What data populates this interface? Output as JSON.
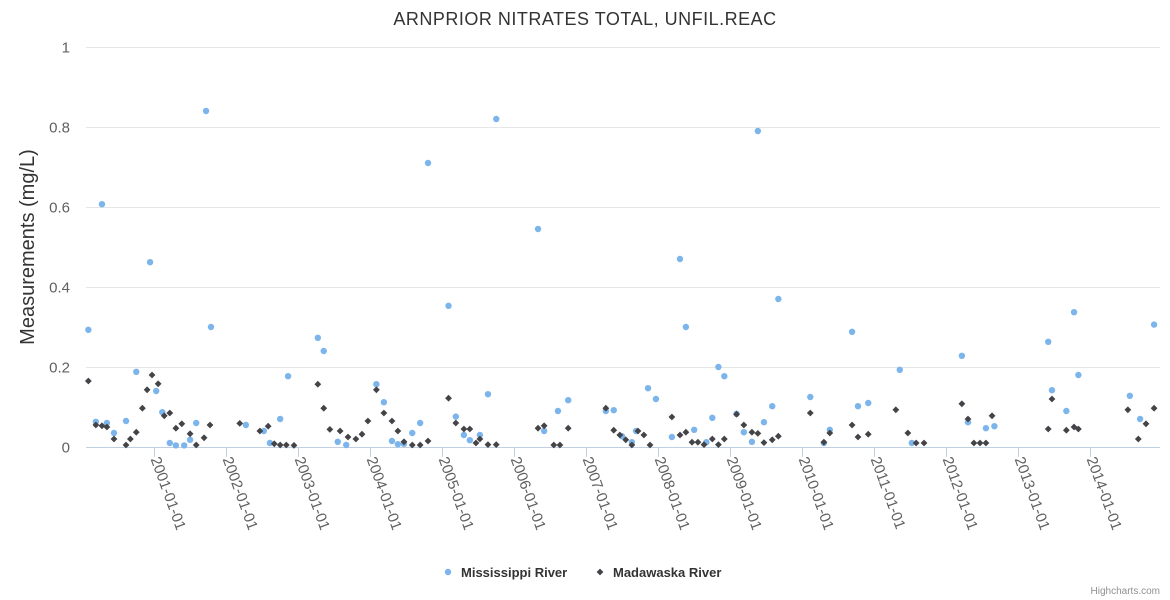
{
  "chart_data": {
    "type": "scatter",
    "title": "ARNPRIOR NITRATES TOTAL, UNFIL.REAC",
    "xlabel": "",
    "ylabel": "Measurements (mg/L)",
    "ylim": [
      0,
      1
    ],
    "yticks": [
      "0",
      "0.2",
      "0.4",
      "0.6",
      "0.8",
      "1"
    ],
    "xlim": [
      "2000-01-20",
      "2014-12-20"
    ],
    "xticks": [
      "2001-01-01",
      "2002-01-01",
      "2003-01-01",
      "2004-01-01",
      "2005-01-01",
      "2006-01-01",
      "2007-01-01",
      "2008-01-01",
      "2009-01-01",
      "2010-01-01",
      "2011-01-01",
      "2012-01-01",
      "2013-01-01",
      "2014-01-01"
    ],
    "grid": true,
    "legend_position": "bottom-center",
    "credits": "Highcharts.com",
    "series": [
      {
        "name": "Mississippi River",
        "color": "#7cb5ec",
        "marker": "circle",
        "points": [
          [
            "2000-02-01",
            0.293
          ],
          [
            "2000-03-10",
            0.063
          ],
          [
            "2000-04-10",
            0.607
          ],
          [
            "2000-05-05",
            0.06
          ],
          [
            "2000-06-10",
            0.035
          ],
          [
            "2000-08-10",
            0.065
          ],
          [
            "2000-10-01",
            0.188
          ],
          [
            "2000-12-10",
            0.462
          ],
          [
            "2001-01-10",
            0.14
          ],
          [
            "2001-02-10",
            0.087
          ],
          [
            "2001-03-20",
            0.01
          ],
          [
            "2001-04-20",
            0.004
          ],
          [
            "2001-06-01",
            0.004
          ],
          [
            "2001-07-01",
            0.018
          ],
          [
            "2001-08-01",
            0.06
          ],
          [
            "2001-09-20",
            0.84
          ],
          [
            "2001-10-15",
            0.3
          ],
          [
            "2002-04-10",
            0.055
          ],
          [
            "2002-07-10",
            0.04
          ],
          [
            "2002-08-10",
            0.01
          ],
          [
            "2002-10-01",
            0.07
          ],
          [
            "2002-11-10",
            0.177
          ],
          [
            "2003-04-10",
            0.273
          ],
          [
            "2003-05-10",
            0.24
          ],
          [
            "2003-07-20",
            0.013
          ],
          [
            "2003-09-01",
            0.005
          ],
          [
            "2004-02-01",
            0.157
          ],
          [
            "2004-03-10",
            0.112
          ],
          [
            "2004-04-20",
            0.015
          ],
          [
            "2004-05-20",
            0.007
          ],
          [
            "2004-06-20",
            0.008
          ],
          [
            "2004-08-01",
            0.035
          ],
          [
            "2004-09-10",
            0.06
          ],
          [
            "2004-10-20",
            0.71
          ],
          [
            "2005-02-01",
            0.353
          ],
          [
            "2005-03-10",
            0.076
          ],
          [
            "2005-04-20",
            0.03
          ],
          [
            "2005-05-20",
            0.017
          ],
          [
            "2005-07-10",
            0.03
          ],
          [
            "2005-08-20",
            0.132
          ],
          [
            "2005-10-01",
            0.82
          ],
          [
            "2006-05-01",
            0.545
          ],
          [
            "2006-06-01",
            0.04
          ],
          [
            "2006-08-10",
            0.09
          ],
          [
            "2006-10-01",
            0.117
          ],
          [
            "2007-04-10",
            0.09
          ],
          [
            "2007-05-20",
            0.092
          ],
          [
            "2007-07-01",
            0.027
          ],
          [
            "2007-08-20",
            0.012
          ],
          [
            "2007-09-10",
            0.04
          ],
          [
            "2007-11-10",
            0.147
          ],
          [
            "2007-12-20",
            0.12
          ],
          [
            "2008-03-10",
            0.025
          ],
          [
            "2008-04-20",
            0.47
          ],
          [
            "2008-05-20",
            0.3
          ],
          [
            "2008-07-01",
            0.043
          ],
          [
            "2008-09-01",
            0.012
          ],
          [
            "2008-10-01",
            0.073
          ],
          [
            "2008-11-01",
            0.2
          ],
          [
            "2008-12-01",
            0.177
          ],
          [
            "2009-02-01",
            0.083
          ],
          [
            "2009-03-10",
            0.037
          ],
          [
            "2009-04-20",
            0.013
          ],
          [
            "2009-05-20",
            0.79
          ],
          [
            "2009-06-20",
            0.062
          ],
          [
            "2009-08-01",
            0.102
          ],
          [
            "2009-09-01",
            0.37
          ],
          [
            "2010-02-10",
            0.125
          ],
          [
            "2010-04-20",
            0.01
          ],
          [
            "2010-05-20",
            0.043
          ],
          [
            "2010-09-10",
            0.288
          ],
          [
            "2010-10-10",
            0.102
          ],
          [
            "2010-12-01",
            0.11
          ],
          [
            "2011-05-10",
            0.193
          ],
          [
            "2011-07-10",
            0.01
          ],
          [
            "2012-03-20",
            0.228
          ],
          [
            "2012-04-20",
            0.062
          ],
          [
            "2012-07-20",
            0.047
          ],
          [
            "2012-09-01",
            0.052
          ],
          [
            "2013-06-01",
            0.263
          ],
          [
            "2013-06-20",
            0.142
          ],
          [
            "2013-09-01",
            0.09
          ],
          [
            "2013-10-10",
            0.337
          ],
          [
            "2013-11-01",
            0.18
          ],
          [
            "2014-07-20",
            0.128
          ],
          [
            "2014-09-10",
            0.07
          ],
          [
            "2014-11-20",
            0.306
          ]
        ]
      },
      {
        "name": "Madawaska River",
        "color": "#434348",
        "marker": "diamond",
        "points": [
          [
            "2000-02-01",
            0.165
          ],
          [
            "2000-03-10",
            0.055
          ],
          [
            "2000-04-10",
            0.053
          ],
          [
            "2000-05-05",
            0.05
          ],
          [
            "2000-06-10",
            0.02
          ],
          [
            "2000-08-10",
            0.005
          ],
          [
            "2000-09-01",
            0.02
          ],
          [
            "2000-10-01",
            0.037
          ],
          [
            "2000-11-01",
            0.097
          ],
          [
            "2000-11-25",
            0.143
          ],
          [
            "2000-12-20",
            0.18
          ],
          [
            "2001-01-20",
            0.158
          ],
          [
            "2001-02-20",
            0.078
          ],
          [
            "2001-03-20",
            0.085
          ],
          [
            "2001-04-20",
            0.047
          ],
          [
            "2001-05-20",
            0.058
          ],
          [
            "2001-07-01",
            0.033
          ],
          [
            "2001-08-01",
            0.005
          ],
          [
            "2001-09-10",
            0.023
          ],
          [
            "2001-10-10",
            0.055
          ],
          [
            "2002-03-10",
            0.059
          ],
          [
            "2002-06-20",
            0.04
          ],
          [
            "2002-08-01",
            0.052
          ],
          [
            "2002-09-01",
            0.008
          ],
          [
            "2002-10-01",
            0.005
          ],
          [
            "2002-11-01",
            0.005
          ],
          [
            "2002-12-10",
            0.004
          ],
          [
            "2003-04-10",
            0.157
          ],
          [
            "2003-05-10",
            0.097
          ],
          [
            "2003-06-10",
            0.044
          ],
          [
            "2003-08-01",
            0.04
          ],
          [
            "2003-09-10",
            0.025
          ],
          [
            "2003-10-20",
            0.02
          ],
          [
            "2003-11-20",
            0.032
          ],
          [
            "2003-12-20",
            0.065
          ],
          [
            "2004-02-01",
            0.143
          ],
          [
            "2004-03-10",
            0.085
          ],
          [
            "2004-04-20",
            0.065
          ],
          [
            "2004-05-20",
            0.04
          ],
          [
            "2004-06-20",
            0.013
          ],
          [
            "2004-08-01",
            0.005
          ],
          [
            "2004-09-10",
            0.005
          ],
          [
            "2004-10-20",
            0.015
          ],
          [
            "2005-02-01",
            0.122
          ],
          [
            "2005-03-10",
            0.06
          ],
          [
            "2005-04-20",
            0.045
          ],
          [
            "2005-05-20",
            0.045
          ],
          [
            "2005-06-20",
            0.01
          ],
          [
            "2005-07-10",
            0.02
          ],
          [
            "2005-08-20",
            0.006
          ],
          [
            "2005-10-01",
            0.006
          ],
          [
            "2006-05-01",
            0.047
          ],
          [
            "2006-06-01",
            0.053
          ],
          [
            "2006-07-20",
            0.005
          ],
          [
            "2006-08-20",
            0.005
          ],
          [
            "2006-10-01",
            0.047
          ],
          [
            "2007-04-10",
            0.097
          ],
          [
            "2007-05-20",
            0.042
          ],
          [
            "2007-06-20",
            0.03
          ],
          [
            "2007-07-20",
            0.018
          ],
          [
            "2007-08-20",
            0.005
          ],
          [
            "2007-09-20",
            0.04
          ],
          [
            "2007-10-20",
            0.03
          ],
          [
            "2007-11-20",
            0.005
          ],
          [
            "2008-03-10",
            0.075
          ],
          [
            "2008-04-20",
            0.03
          ],
          [
            "2008-05-20",
            0.037
          ],
          [
            "2008-06-20",
            0.012
          ],
          [
            "2008-07-20",
            0.012
          ],
          [
            "2008-08-20",
            0.006
          ],
          [
            "2008-10-01",
            0.02
          ],
          [
            "2008-11-01",
            0.006
          ],
          [
            "2008-12-01",
            0.02
          ],
          [
            "2009-02-01",
            0.082
          ],
          [
            "2009-03-10",
            0.055
          ],
          [
            "2009-04-20",
            0.037
          ],
          [
            "2009-05-20",
            0.034
          ],
          [
            "2009-06-20",
            0.011
          ],
          [
            "2009-08-01",
            0.018
          ],
          [
            "2009-09-01",
            0.027
          ],
          [
            "2010-02-10",
            0.085
          ],
          [
            "2010-04-20",
            0.012
          ],
          [
            "2010-05-20",
            0.035
          ],
          [
            "2010-09-10",
            0.055
          ],
          [
            "2010-10-10",
            0.025
          ],
          [
            "2010-12-01",
            0.032
          ],
          [
            "2011-04-20",
            0.093
          ],
          [
            "2011-06-20",
            0.035
          ],
          [
            "2011-08-01",
            0.01
          ],
          [
            "2011-09-10",
            0.01
          ],
          [
            "2012-03-20",
            0.108
          ],
          [
            "2012-04-20",
            0.07
          ],
          [
            "2012-05-20",
            0.01
          ],
          [
            "2012-06-20",
            0.01
          ],
          [
            "2012-07-20",
            0.01
          ],
          [
            "2012-08-20",
            0.078
          ],
          [
            "2013-06-01",
            0.045
          ],
          [
            "2013-06-20",
            0.12
          ],
          [
            "2013-09-01",
            0.042
          ],
          [
            "2013-10-10",
            0.05
          ],
          [
            "2013-11-01",
            0.045
          ],
          [
            "2014-07-10",
            0.093
          ],
          [
            "2014-09-01",
            0.02
          ],
          [
            "2014-10-10",
            0.058
          ],
          [
            "2014-11-20",
            0.097
          ]
        ]
      }
    ]
  }
}
